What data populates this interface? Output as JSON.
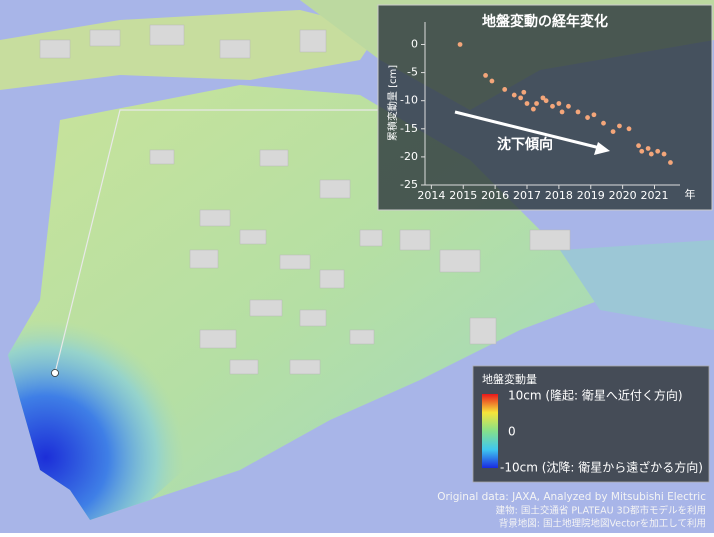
{
  "chart_data": {
    "type": "scatter",
    "title": "地盤変動の経年変化",
    "ylabel": "累積変動量 [cm]",
    "xlabel": "年",
    "annotation": "沈下傾向",
    "x": [
      2014.9,
      2015.7,
      2015.9,
      2016.3,
      2016.6,
      2016.8,
      2016.9,
      2017.0,
      2017.2,
      2017.3,
      2017.5,
      2017.6,
      2017.8,
      2018.0,
      2018.1,
      2018.3,
      2018.6,
      2018.9,
      2019.1,
      2019.4,
      2019.7,
      2019.9,
      2020.2,
      2020.5,
      2020.6,
      2020.8,
      2020.9,
      2021.1,
      2021.3,
      2021.5
    ],
    "values": [
      0,
      -5.5,
      -6.5,
      -8,
      -9,
      -9.5,
      -8.5,
      -10.5,
      -11.5,
      -10.5,
      -9.5,
      -10,
      -11,
      -10.5,
      -12,
      -11,
      -12,
      -13,
      -12.5,
      -14,
      -15.5,
      -14.5,
      -15,
      -18,
      -19,
      -18.5,
      -19.5,
      -19,
      -19.5,
      -21
    ],
    "color": "#f4a67a",
    "xlim": [
      2013.8,
      2021.8
    ],
    "xticks": [
      2014,
      2015,
      2016,
      2017,
      2018,
      2019,
      2020,
      2021
    ],
    "ylim": [
      -25,
      4
    ],
    "yticks": [
      0,
      -5,
      -10,
      -15,
      -20,
      -25
    ]
  },
  "legend": {
    "title": "地盤変動量",
    "labels": [
      "10cm (隆起: 衛星へ近付く方向)",
      "0",
      "-10cm (沈降: 衛星から遠ざかる方向)"
    ]
  },
  "credits": [
    "Original data: JAXA, Analyzed by Mitsubishi Electric",
    "建物: 国土交通省 PLATEAU 3D都市モデルを利用",
    "背景地図: 国土地理院地図Vectorを加工して利用"
  ]
}
